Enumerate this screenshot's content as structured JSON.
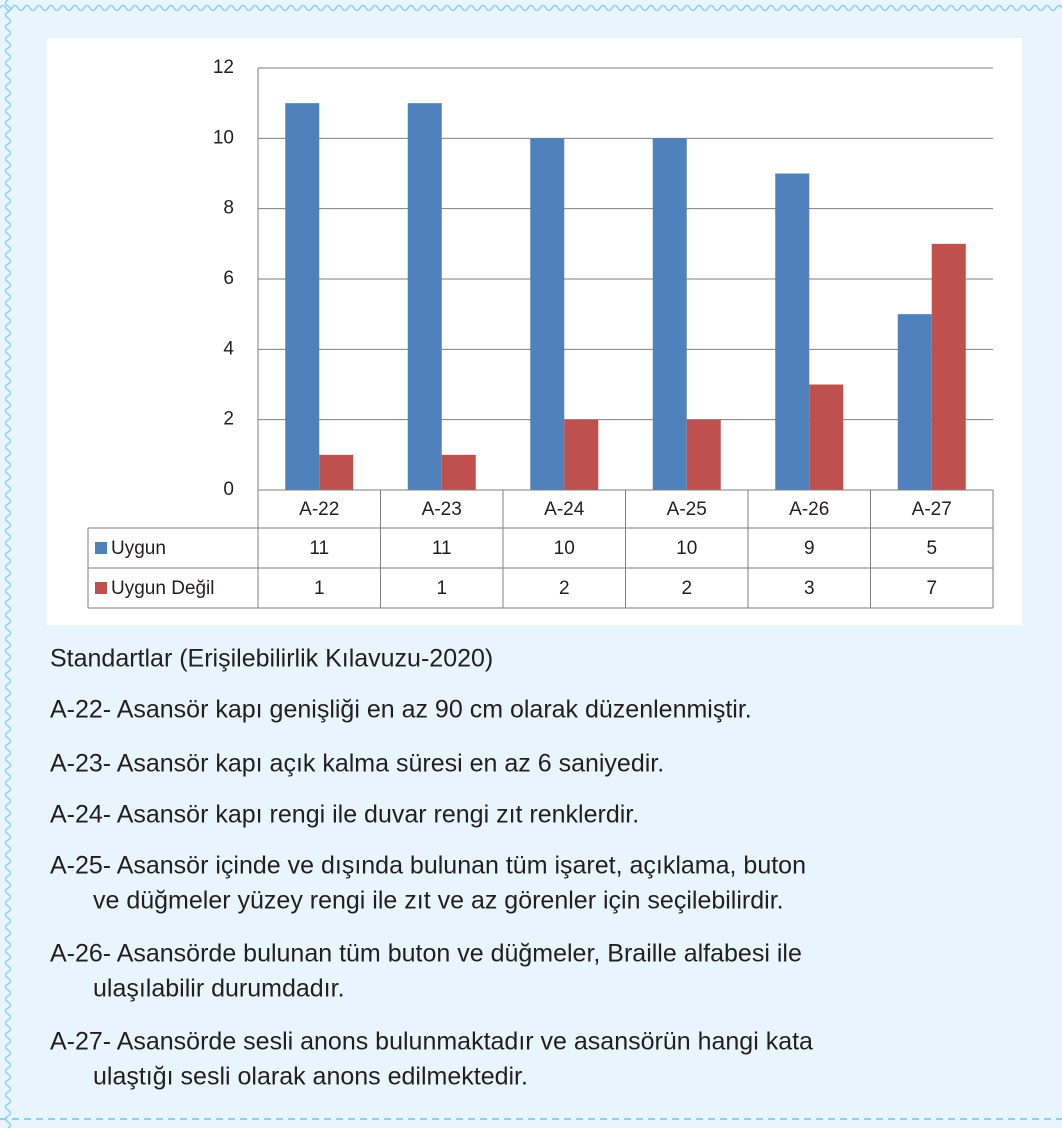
{
  "chart_data": {
    "type": "bar",
    "categories": [
      "A-22",
      "A-23",
      "A-24",
      "A-25",
      "A-26",
      "A-27"
    ],
    "series": [
      {
        "name": "Uygun",
        "color": "#4f81bd",
        "values": [
          11,
          11,
          10,
          10,
          9,
          5
        ]
      },
      {
        "name": "Uygun Değil",
        "color": "#c0504d",
        "values": [
          1,
          1,
          2,
          2,
          3,
          7
        ]
      }
    ],
    "ylim": [
      0,
      12
    ],
    "yticks": [
      0,
      2,
      4,
      6,
      8,
      10,
      12
    ],
    "grid": true,
    "data_table": true
  },
  "notes": {
    "heading": "Standartlar (Erişilebilirlik Kılavuzu-2020)",
    "items": [
      [
        "A-22- Asansör kapı genişliği en az 90 cm olarak düzenlenmiştir."
      ],
      [
        "A-23- Asansör kapı açık kalma süresi en az 6 saniyedir."
      ],
      [
        "A-24- Asansör kapı rengi ile duvar rengi zıt renklerdir."
      ],
      [
        "A-25- Asansör içinde ve dışında bulunan tüm işaret, açıklama, buton",
        "ve düğmeler yüzey rengi ile zıt ve az görenler için seçilebilirdir."
      ],
      [
        "A-26- Asansörde bulunan tüm buton ve düğmeler, Braille alfabesi ile",
        "ulaşılabilir durumdadır."
      ],
      [
        "A-27- Asansörde sesli anons bulunmaktadır ve asansörün hangi kata",
        "ulaştığı sesli olarak anons edilmektedir."
      ]
    ]
  }
}
